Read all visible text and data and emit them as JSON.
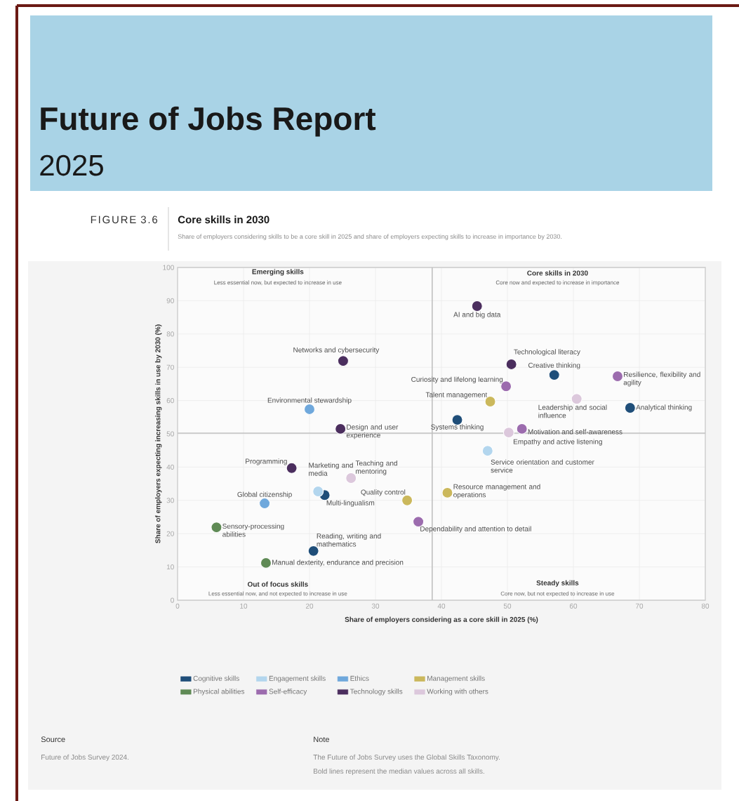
{
  "chart_data": {
    "type": "scatter",
    "title": "Core skills in 2030",
    "subtitle": "Share of employers considering skills to be a core skill in 2025 and share of employers expecting skills to increase in importance by 2030.",
    "xlabel": "Share of employers considering as a core skill in 2025 (%)",
    "ylabel": "Share of employers expecting increasing skills in use by 2030 (%)",
    "xlim": [
      0,
      80
    ],
    "ylim": [
      0,
      100
    ],
    "xticks": [
      0,
      10,
      20,
      30,
      40,
      50,
      60,
      70,
      80
    ],
    "yticks": [
      0,
      10,
      20,
      30,
      40,
      50,
      60,
      70,
      80,
      90,
      100
    ],
    "grid": true,
    "legend": "bottom",
    "marker": "circle",
    "series": [
      {
        "name": "Cognitive skills",
        "color": "#1f4e79",
        "x": [
          57.1,
          68.6,
          42.4,
          22.3,
          20.6
        ],
        "values": [
          67.7,
          57.8,
          54.2,
          31.6,
          14.8
        ]
      },
      {
        "name": "Engagement skills",
        "color": "#b3d6ee",
        "x": [
          21.3,
          47.0
        ],
        "values": [
          32.7,
          44.9
        ]
      },
      {
        "name": "Ethics",
        "color": "#6fa8dc",
        "x": [
          20.0,
          13.2
        ],
        "values": [
          57.4,
          29.1
        ]
      },
      {
        "name": "Management skills",
        "color": "#cbb85c",
        "x": [
          47.4,
          34.8,
          40.9
        ],
        "values": [
          59.7,
          30.0,
          32.3
        ]
      },
      {
        "name": "Physical abilities",
        "color": "#5f8a55",
        "x": [
          5.9,
          13.4
        ],
        "values": [
          21.9,
          11.2
        ]
      },
      {
        "name": "Self-efficacy",
        "color": "#9c6cae",
        "x": [
          66.7,
          49.8,
          52.2,
          36.5
        ],
        "values": [
          67.3,
          64.3,
          51.5,
          23.6
        ]
      },
      {
        "name": "Technology skills",
        "color": "#4b2e5e",
        "x": [
          45.4,
          25.1,
          50.6,
          24.7,
          17.3
        ],
        "values": [
          88.4,
          71.9,
          70.9,
          51.5,
          39.7
        ]
      },
      {
        "name": "Working with others",
        "color": "#dcc8dc",
        "x": [
          60.5,
          50.2,
          26.3
        ],
        "values": [
          60.5,
          50.4,
          36.7
        ]
      }
    ],
    "ref_lines": [
      {
        "axis": "x",
        "value": 38.6,
        "color": "#c0c0c0"
      },
      {
        "axis": "y",
        "value": 50.2,
        "color": "#c0c0c0"
      }
    ],
    "annotations": [
      "Future of Jobs Report",
      "2025",
      "FIGURE 3.6",
      "Emerging skills",
      "Less essential now, but expected to increase in use",
      "Core skills in 2030",
      "Core now and expected to increase in importance",
      "Out of focus skills",
      "Less essential now, and not expected to increase in use",
      "Steady skills",
      "Core now, but not expected to increase in use",
      "Source",
      "Future of Jobs Survey 2024.",
      "Note",
      "The Future of Jobs Survey uses the Global Skills Taxonomy.",
      "Bold lines represent the median values across all skills.",
      {
        "text": "AI and big data",
        "x": 45.4,
        "y": 88.4
      },
      {
        "text": "Networks and cybersecurity",
        "x": 25.1,
        "y": 71.9
      },
      {
        "text": "Technological literacy",
        "x": 50.6,
        "y": 70.9
      },
      {
        "text": "Creative thinking",
        "x": 57.1,
        "y": 67.7
      },
      {
        "text": "Resilience, flexibility and agility",
        "x": 66.7,
        "y": 67.3
      },
      {
        "text": "Curiosity and lifelong learning",
        "x": 49.8,
        "y": 64.3
      },
      {
        "text": "Talent management",
        "x": 47.4,
        "y": 59.7
      },
      {
        "text": "Leadership and social influence",
        "x": 60.5,
        "y": 60.5
      },
      {
        "text": "Analytical thinking",
        "x": 68.6,
        "y": 57.8
      },
      {
        "text": "Environmental stewardship",
        "x": 20.0,
        "y": 57.4
      },
      {
        "text": "Systems thinking",
        "x": 42.4,
        "y": 54.2
      },
      {
        "text": "Design and user experience",
        "x": 24.7,
        "y": 51.5
      },
      {
        "text": "Motivation and self-awareness",
        "x": 52.2,
        "y": 51.5
      },
      {
        "text": "Empathy and active listening",
        "x": 50.2,
        "y": 50.4
      },
      {
        "text": "Service orientation and customer service",
        "x": 47.0,
        "y": 44.9
      },
      {
        "text": "Programming",
        "x": 17.3,
        "y": 39.7
      },
      {
        "text": "Teaching and mentoring",
        "x": 26.3,
        "y": 36.7
      },
      {
        "text": "Marketing and media",
        "x": 21.3,
        "y": 32.7
      },
      {
        "text": "Multi-lingualism",
        "x": 22.3,
        "y": 31.6
      },
      {
        "text": "Global citizenship",
        "x": 13.2,
        "y": 29.1
      },
      {
        "text": "Quality control",
        "x": 34.8,
        "y": 30.0
      },
      {
        "text": "Resource management and operations",
        "x": 40.9,
        "y": 32.3
      },
      {
        "text": "Dependability and attention to detail",
        "x": 36.5,
        "y": 23.6
      },
      {
        "text": "Sensory-processing abilities",
        "x": 5.9,
        "y": 21.9
      },
      {
        "text": "Reading, writing and mathematics",
        "x": 20.6,
        "y": 14.8
      },
      {
        "text": "Manual dexterity, endurance and precision",
        "x": 13.4,
        "y": 11.2
      }
    ]
  }
}
